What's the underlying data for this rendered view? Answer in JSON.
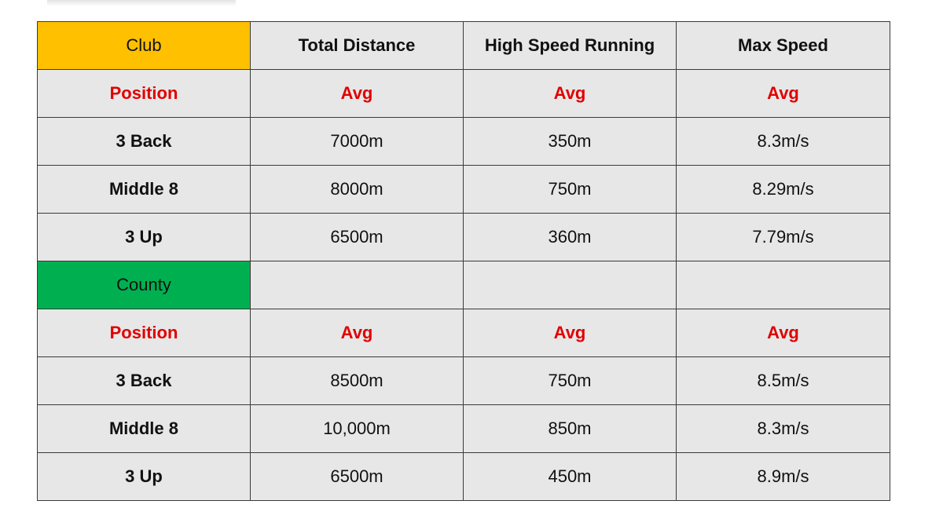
{
  "colors": {
    "club_fill": "#ffc000",
    "county_fill": "#00b050",
    "cell_fill": "#e7e7e7",
    "accent_red": "#e00000"
  },
  "header": {
    "club_label": "Club",
    "columns": [
      "Total Distance",
      "High Speed Running",
      "Max Speed"
    ]
  },
  "club": {
    "subheader": {
      "position": "Position",
      "avg": [
        "Avg",
        "Avg",
        "Avg"
      ]
    },
    "rows": [
      {
        "position": "3 Back",
        "total_distance": "7000m",
        "hsr": "350m",
        "max_speed": "8.3m/s"
      },
      {
        "position": "Middle 8",
        "total_distance": "8000m",
        "hsr": "750m",
        "max_speed": "8.29m/s"
      },
      {
        "position": "3 Up",
        "total_distance": "6500m",
        "hsr": "360m",
        "max_speed": "7.79m/s"
      }
    ]
  },
  "county": {
    "label": "County",
    "subheader": {
      "position": "Position",
      "avg": [
        "Avg",
        "Avg",
        "Avg"
      ]
    },
    "rows": [
      {
        "position": "3 Back",
        "total_distance": "8500m",
        "hsr": "750m",
        "max_speed": "8.5m/s"
      },
      {
        "position": "Middle 8",
        "total_distance": "10,000m",
        "hsr": "850m",
        "max_speed": "8.3m/s"
      },
      {
        "position": "3 Up",
        "total_distance": "6500m",
        "hsr": "450m",
        "max_speed": "8.9m/s"
      }
    ]
  }
}
